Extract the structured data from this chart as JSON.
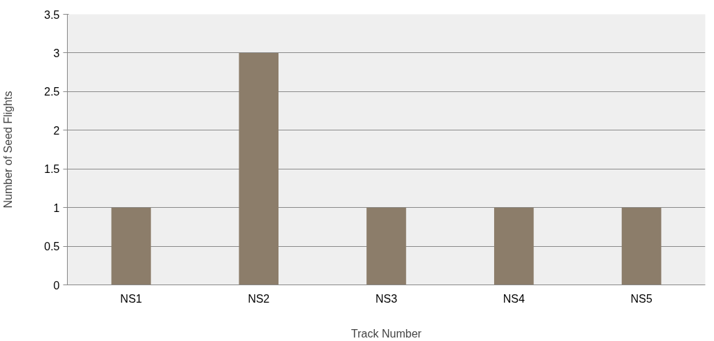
{
  "chart_data": {
    "type": "bar",
    "xlabel": "Track Number",
    "ylabel": "Number of Seed Flights",
    "categories": [
      "NS1",
      "NS2",
      "NS3",
      "NS4",
      "NS5"
    ],
    "values": [
      1,
      3,
      1,
      1,
      1
    ],
    "color": "#8c7d6a",
    "ylim": [
      0,
      3.5
    ],
    "yticks": [
      0,
      0.5,
      1,
      1.5,
      2,
      2.5,
      3,
      3.5
    ],
    "grid": "y"
  }
}
